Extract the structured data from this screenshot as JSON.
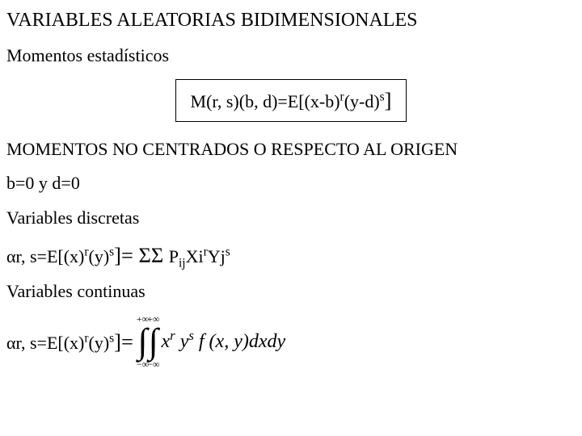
{
  "title": "VARIABLES ALEATORIAS BIDIMENSIONALES",
  "subtitle": "Momentos estadísticos",
  "boxed_formula": {
    "lhs": "M(r, s)(b, d)=E[(x-b)",
    "sup1": "r",
    "mid": "(y-d)",
    "sup2": "s",
    "close": "]"
  },
  "section1": "MOMENTOS NO CENTRADOS O RESPECTO AL ORIGEN",
  "cond": "b=0 y d=0",
  "discrete_title": "Variables discretas",
  "discrete": {
    "alpha": "α",
    "lhs1": "r, s=E[(x)",
    "sup_r": "r",
    "lhs2": "(y)",
    "sup_s": "s",
    "close": "]= ",
    "sums": "ΣΣ ",
    "p": "P",
    "sub_ij": "ij",
    "xi": "Xi",
    "sup_r2": "r",
    "yj": "Yj",
    "sup_s2": "s"
  },
  "cont_title": "Variables continuas",
  "cont": {
    "alpha": "α",
    "lhs1": "r, s=E[(x)",
    "sup_r": "r",
    "lhs2": "(y)",
    "sup_s": "s",
    "close": "]= ",
    "int_upper": "+∞",
    "int_lower": "−∞",
    "integrand_x": "x",
    "integrand_y": "y",
    "integrand_f": " f (x, y)dxdy"
  }
}
